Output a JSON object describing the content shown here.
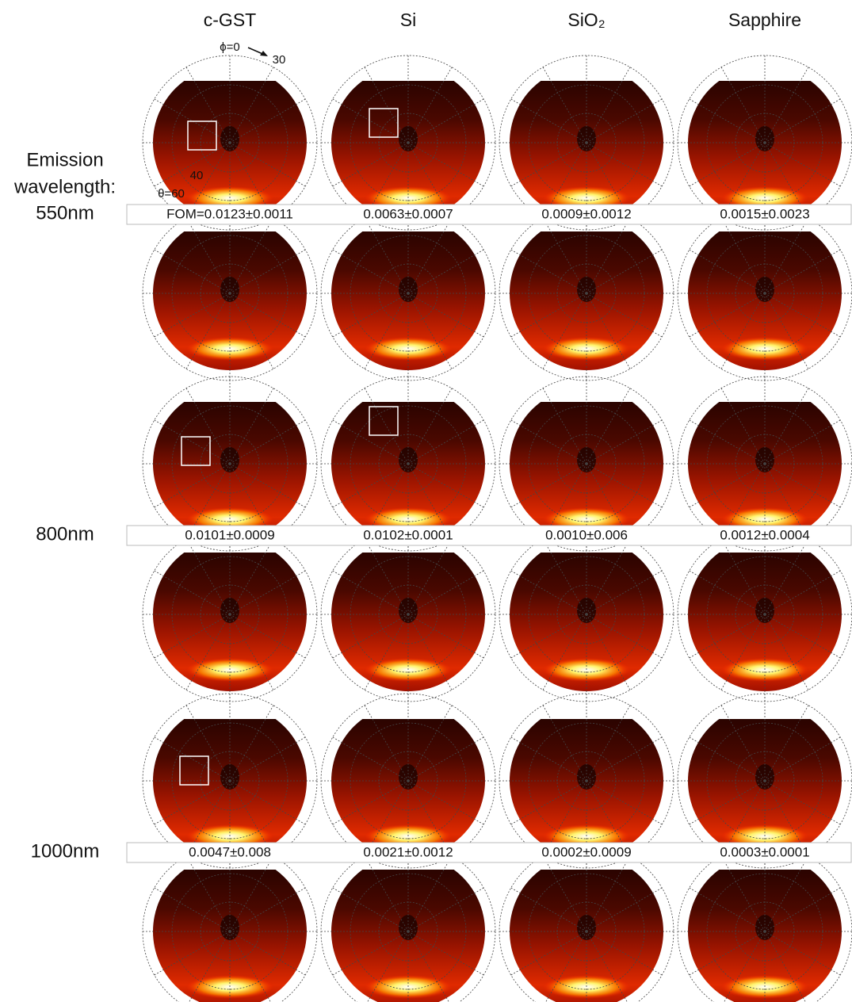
{
  "columns": [
    "c-GST",
    "Si",
    "SiO₂",
    "Sapphire"
  ],
  "row_title": [
    "Emission",
    "wavelength:"
  ],
  "rows": [
    {
      "wavelength": "550nm",
      "fom": [
        "FOM=0.0123±0.0011",
        "0.0063±0.0007",
        "0.0009±0.0012",
        "0.0015±0.0023"
      ]
    },
    {
      "wavelength": "800nm",
      "fom": [
        "0.0101±0.0009",
        "0.0102±0.0001",
        "0.0010±0.006",
        "0.0012±0.0004"
      ]
    },
    {
      "wavelength": "1000nm",
      "fom": [
        "0.0047±0.008",
        "0.0021±0.0012",
        "0.0002±0.0009",
        "0.0003±0.0001"
      ]
    }
  ],
  "annotations": {
    "phi": "ϕ=0",
    "phi_tick": "30",
    "theta_tick": "40",
    "theta": "θ=60"
  }
}
